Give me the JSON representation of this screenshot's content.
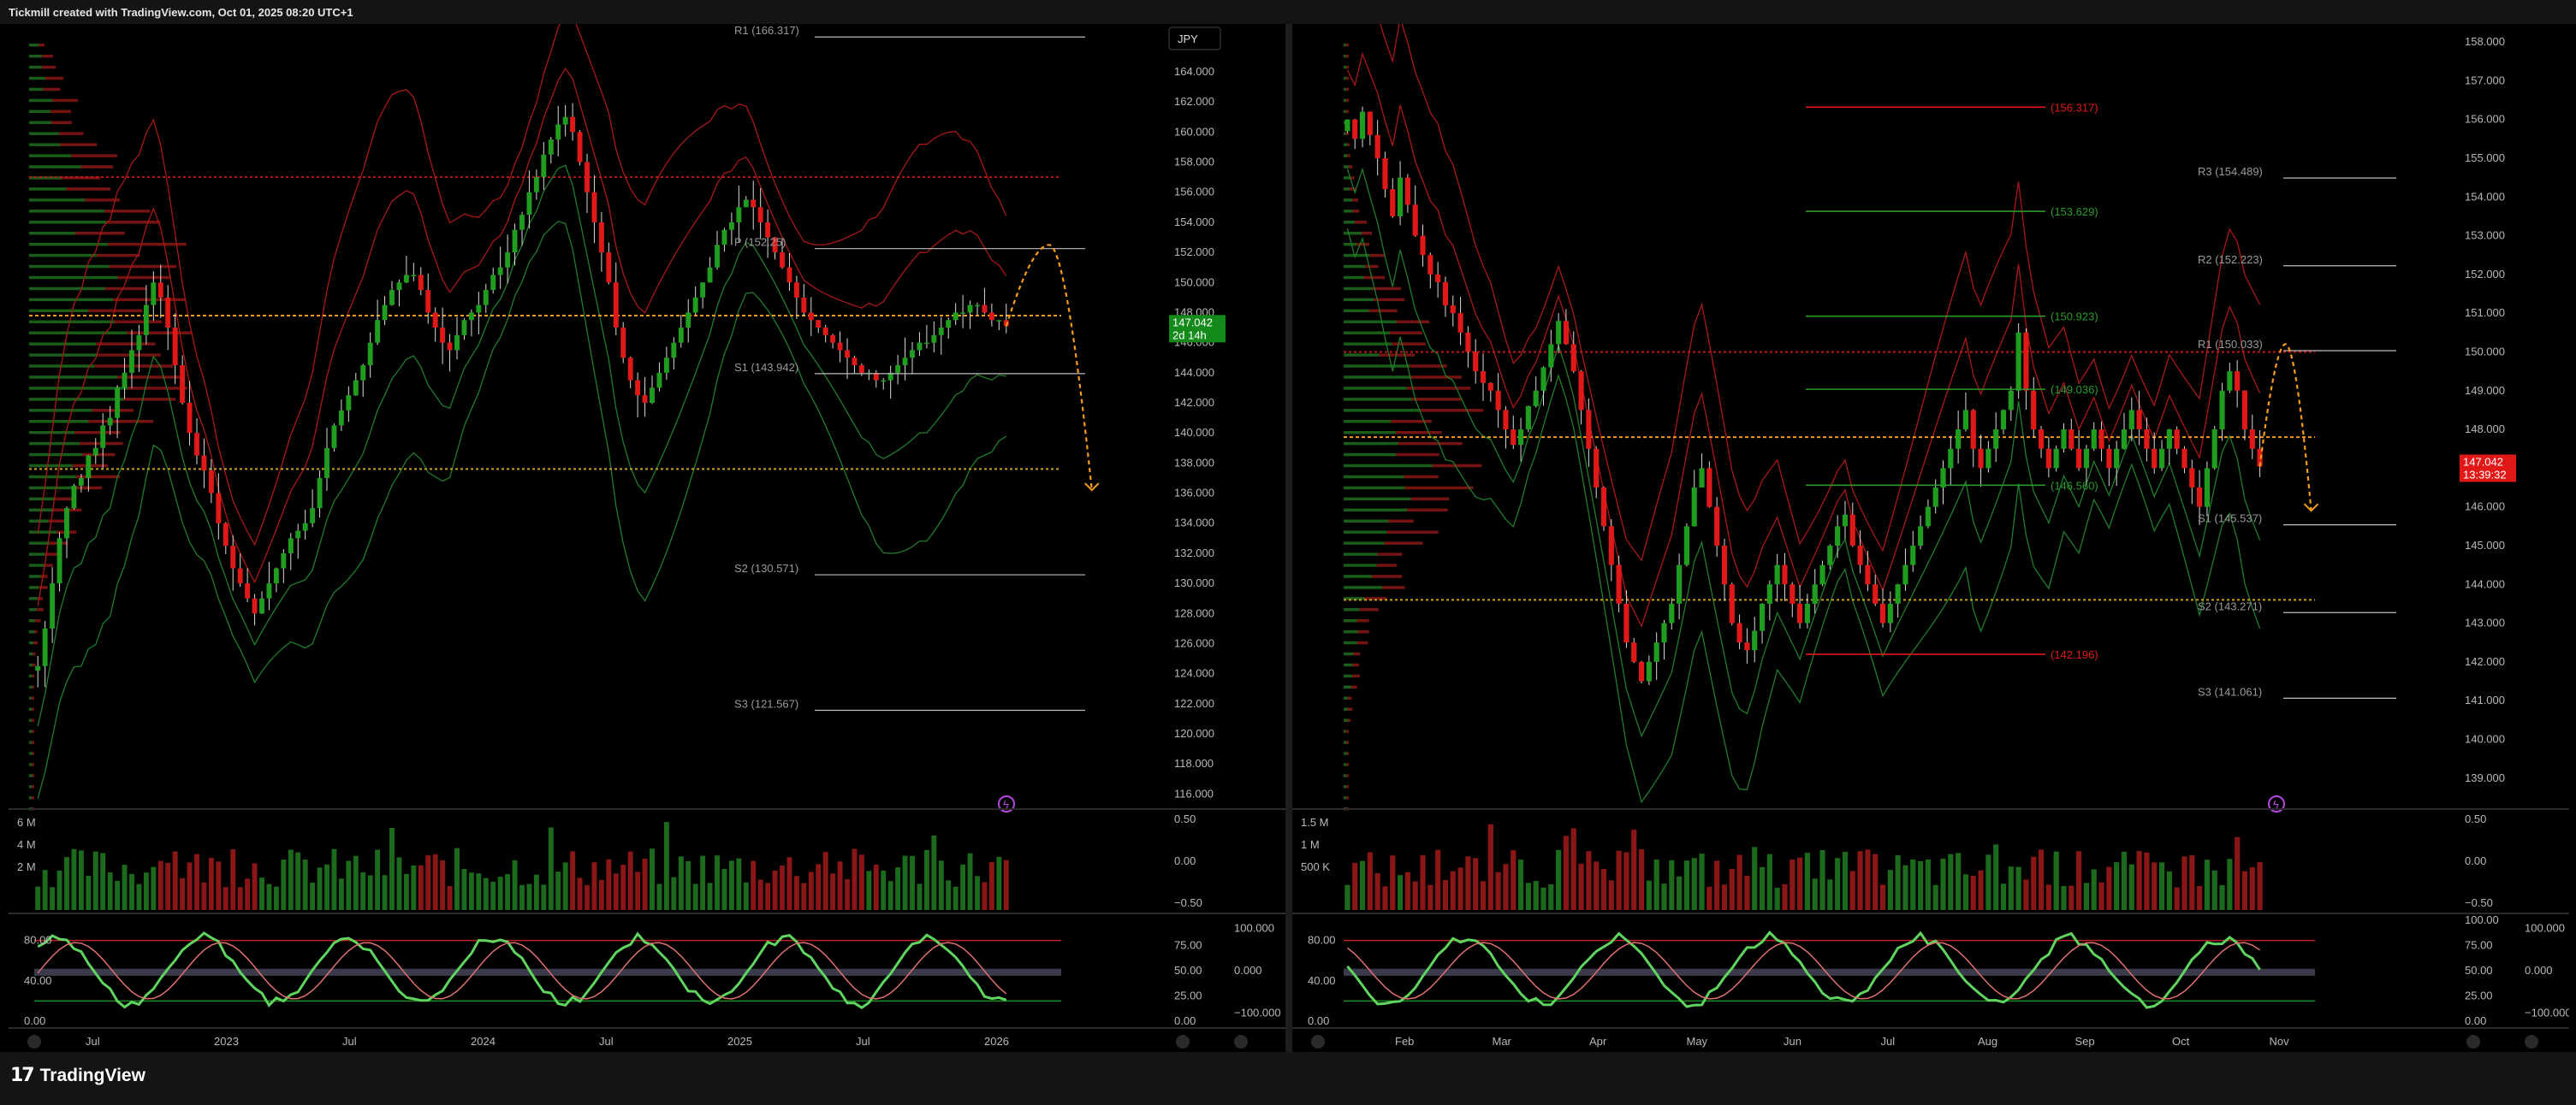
{
  "header": {
    "title": "Tickmill created with TradingView.com, Oct 01, 2025 08:20 UTC+1"
  },
  "footer": {
    "brand": "TradingView",
    "logo": "tradingview-logo"
  },
  "colors": {
    "up": "#1e9d1e",
    "down": "#e01818",
    "pivot_line": "#cfcfcf",
    "poc": "#f59b1a",
    "bg": "#000000"
  },
  "chart_data": [
    {
      "id": "left",
      "type": "candlestick",
      "symbol_badge": "JPY",
      "price_tag": "147.042",
      "time_tag": "2d 14h",
      "x_ticks": [
        "Jul",
        "2023",
        "Jul",
        "2024",
        "Jul",
        "2025",
        "Jul",
        "2026"
      ],
      "y_ticks": [
        "164.000",
        "162.000",
        "160.000",
        "158.000",
        "156.000",
        "154.000",
        "152.000",
        "150.000",
        "148.000",
        "146.000",
        "144.000",
        "142.000",
        "140.000",
        "138.000",
        "136.000",
        "134.000",
        "132.000",
        "130.000",
        "128.000",
        "126.000",
        "124.000",
        "122.000",
        "120.000",
        "118.000",
        "116.000"
      ],
      "ylim": [
        115,
        166.5
      ],
      "pivots": [
        {
          "label": "R1 (166.317)",
          "price": 166.317
        },
        {
          "label": "P (152.25)",
          "price": 152.25
        },
        {
          "label": "S1 (143.942)",
          "price": 143.942
        },
        {
          "label": "S2 (130.571)",
          "price": 130.571
        },
        {
          "label": "S3 (121.567)",
          "price": 121.567
        }
      ],
      "closes": [
        124.5,
        127,
        130,
        133,
        135,
        136.5,
        137,
        138.5,
        139,
        140.5,
        141,
        143,
        144,
        145.5,
        146.5,
        148.5,
        150,
        149,
        147,
        144.5,
        142,
        140,
        138.5,
        137.5,
        136,
        134,
        132.5,
        131,
        130,
        129,
        128,
        129,
        130,
        131,
        132,
        133,
        133.5,
        134,
        135,
        137,
        139,
        140.5,
        141.5,
        142.5,
        143.5,
        144.5,
        146,
        147.5,
        148.5,
        149.5,
        150,
        150.5,
        150.5,
        149.5,
        148,
        147,
        146,
        145.5,
        146.5,
        147.5,
        148,
        148.5,
        149.5,
        150.5,
        151,
        152,
        153.5,
        154.5,
        156,
        157,
        158.5,
        159.5,
        160.5,
        161,
        160,
        158,
        156,
        154,
        152,
        150,
        147,
        145,
        143.5,
        142.5,
        142,
        143,
        144,
        145,
        146,
        147,
        148,
        149,
        150,
        151,
        152.5,
        153.5,
        154,
        155,
        155.5,
        155,
        154,
        153,
        152,
        151,
        150,
        149,
        148,
        147.5,
        147,
        146.5,
        146,
        145.5,
        145,
        144.5,
        144,
        144,
        143.5,
        143.5,
        144,
        144.5,
        145,
        145.5,
        146,
        146,
        146.5,
        147,
        147.5,
        148,
        148,
        148.5,
        148.5,
        148,
        147.5,
        147.5,
        147.1
      ],
      "volume": {
        "y_ticks": [
          "6 M",
          "4 M",
          "2 M"
        ],
        "right_ticks": [
          "0.50",
          "0.00",
          "−0.50"
        ]
      },
      "oscillator": {
        "y_ticks": [
          "80.00",
          "40.00",
          "0.00"
        ],
        "right_ticks": [
          "75.00",
          "50.00",
          "25.00",
          "0.00"
        ],
        "far_ticks": [
          "100.000",
          "0.000",
          "−100.000"
        ],
        "upper": 80,
        "lower": 20
      }
    },
    {
      "id": "right",
      "type": "candlestick",
      "price_tag": "147.042",
      "time_tag": "13:39:32",
      "x_ticks": [
        "Feb",
        "Mar",
        "Apr",
        "May",
        "Jun",
        "Jul",
        "Aug",
        "Sep",
        "Oct",
        "Nov"
      ],
      "y_ticks": [
        "158.000",
        "157.000",
        "156.000",
        "155.000",
        "154.000",
        "153.000",
        "152.000",
        "151.000",
        "150.000",
        "149.000",
        "148.000",
        "147.000",
        "146.000",
        "145.000",
        "144.000",
        "143.000",
        "142.000",
        "141.000",
        "140.000",
        "139.000"
      ],
      "ylim": [
        138.2,
        158.2
      ],
      "pivots": [
        {
          "label": "R3 (154.489)",
          "price": 154.489
        },
        {
          "label": "R2 (152.223)",
          "price": 152.223
        },
        {
          "label": "R1 (150.033)",
          "price": 150.033
        },
        {
          "label": "S1 (145.537)",
          "price": 145.537
        },
        {
          "label": "S2 (143.271)",
          "price": 143.271
        },
        {
          "label": "S3 (141.061)",
          "price": 141.061
        }
      ],
      "levels": [
        {
          "label": "(156.317)",
          "price": 156.317,
          "color": "red"
        },
        {
          "label": "(153.629)",
          "price": 153.629,
          "color": "green"
        },
        {
          "label": "(150.923)",
          "price": 150.923,
          "color": "green"
        },
        {
          "label": "(149.036)",
          "price": 149.036,
          "color": "green"
        },
        {
          "label": "(146.560)",
          "price": 146.56,
          "color": "green"
        },
        {
          "label": "(142.196)",
          "price": 142.196,
          "color": "red"
        }
      ],
      "closes": [
        156,
        155.5,
        156.2,
        155.6,
        155,
        154.2,
        153.5,
        154.5,
        153.8,
        153,
        152.5,
        152,
        151.8,
        151.2,
        151,
        150.5,
        150,
        149.5,
        149.2,
        149,
        148.5,
        148,
        147.6,
        148,
        148.6,
        149,
        149.6,
        150.2,
        150.8,
        150.2,
        149.5,
        148.5,
        147.5,
        146.5,
        145.5,
        144.5,
        143.5,
        142.5,
        142,
        141.5,
        142,
        142.5,
        143,
        143.5,
        144.5,
        145.5,
        146.5,
        147,
        146,
        145,
        144,
        143,
        142.5,
        142.3,
        142.8,
        143.5,
        144,
        144.5,
        144,
        143.5,
        143,
        143.5,
        144,
        144.5,
        145,
        145.5,
        145.8,
        145,
        144.5,
        144,
        143.5,
        143,
        143.5,
        144,
        144.5,
        145,
        145.5,
        146,
        146.5,
        147,
        147.5,
        148,
        148.5,
        147.5,
        147,
        147.5,
        148,
        148.5,
        149,
        150.5,
        149,
        148,
        147.5,
        147,
        147.5,
        148,
        147.5,
        147,
        147.5,
        148,
        147.5,
        147,
        147.5,
        148,
        148.5,
        148,
        147.5,
        147,
        147.5,
        148,
        147.5,
        147,
        146.5,
        146,
        147,
        148,
        149,
        149.5,
        149,
        148,
        147.5,
        147.04
      ],
      "volume": {
        "y_ticks": [
          "1.5 M",
          "1 M",
          "500 K"
        ],
        "right_ticks": [
          "0.50",
          "0.00",
          "−0.50"
        ]
      },
      "oscillator": {
        "y_ticks": [
          "80.00",
          "40.00",
          "0.00"
        ],
        "right_ticks": [
          "100.00",
          "75.00",
          "50.00",
          "25.00",
          "0.00"
        ],
        "far_ticks": [
          "100.000",
          "0.000",
          "−100.000"
        ],
        "upper": 80,
        "lower": 20
      }
    }
  ]
}
